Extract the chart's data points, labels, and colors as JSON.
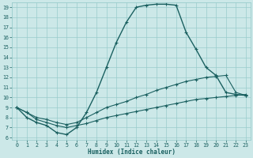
{
  "xlabel": "Humidex (Indice chaleur)",
  "bg_color": "#cce8e8",
  "grid_color": "#99cccc",
  "line_color": "#1a6060",
  "xmin": -0.5,
  "xmax": 23.5,
  "ymin": 5.8,
  "ymax": 19.5,
  "yticks": [
    6,
    7,
    8,
    9,
    10,
    11,
    12,
    13,
    14,
    15,
    16,
    17,
    18,
    19
  ],
  "xticks": [
    0,
    1,
    2,
    3,
    4,
    5,
    6,
    7,
    8,
    9,
    10,
    11,
    12,
    13,
    14,
    15,
    16,
    17,
    18,
    19,
    20,
    21,
    22,
    23
  ],
  "curves": [
    {
      "x": [
        0,
        1,
        2,
        3,
        4,
        5,
        6,
        7,
        8,
        9,
        10,
        11,
        12,
        13,
        14,
        15,
        16,
        17,
        18,
        19,
        20,
        21,
        22,
        23
      ],
      "y": [
        9,
        8,
        7.5,
        7.2,
        6.5,
        6.3,
        7.0,
        8.5,
        10.5,
        13.0,
        15.5,
        17.5,
        19.0,
        19.2,
        19.3,
        19.3,
        19.2,
        16.5,
        14.8,
        13.0,
        12.2,
        10.5,
        10.3,
        10.2
      ]
    },
    {
      "x": [
        0,
        1,
        2,
        3,
        4,
        5,
        6,
        7,
        8,
        9,
        10,
        11,
        12,
        13,
        14,
        15,
        16,
        17,
        18,
        19,
        20,
        21,
        22,
        23
      ],
      "y": [
        9,
        8.5,
        8.0,
        7.8,
        7.5,
        7.3,
        7.5,
        8.0,
        8.5,
        9.0,
        9.3,
        9.6,
        10.0,
        10.3,
        10.7,
        11.0,
        11.3,
        11.6,
        11.8,
        12.0,
        12.1,
        12.2,
        10.5,
        10.2
      ]
    },
    {
      "x": [
        0,
        1,
        2,
        3,
        4,
        5,
        6,
        7,
        8,
        9,
        10,
        11,
        12,
        13,
        14,
        15,
        16,
        17,
        18,
        19,
        20,
        21,
        22,
        23
      ],
      "y": [
        9,
        8.5,
        7.8,
        7.5,
        7.2,
        7.0,
        7.2,
        7.4,
        7.7,
        8.0,
        8.2,
        8.4,
        8.6,
        8.8,
        9.0,
        9.2,
        9.4,
        9.6,
        9.8,
        9.9,
        10.0,
        10.1,
        10.2,
        10.3
      ]
    }
  ]
}
